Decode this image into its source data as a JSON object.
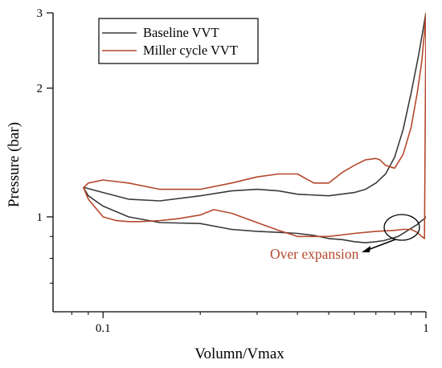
{
  "chart_data": {
    "type": "line",
    "title": "",
    "xlabel": "Volumn/Vmax",
    "ylabel": "Pressure (bar)",
    "x_scale": "log",
    "y_scale": "log",
    "xlim": [
      0.07,
      1.0
    ],
    "ylim": [
      0.6,
      3.0
    ],
    "x_ticks": [
      {
        "value": 0.1,
        "label": "0.1"
      },
      {
        "value": 1,
        "label": "1"
      }
    ],
    "y_ticks": [
      {
        "value": 1,
        "label": "1"
      },
      {
        "value": 2,
        "label": "2"
      },
      {
        "value": 3,
        "label": "3"
      }
    ],
    "legend_position": "top-left",
    "grid": false,
    "series": [
      {
        "name": "Baseline VVT",
        "color": "#3a3a3a",
        "x": [
          1.0,
          0.95,
          0.9,
          0.85,
          0.8,
          0.75,
          0.7,
          0.65,
          0.6,
          0.5,
          0.4,
          0.35,
          0.3,
          0.25,
          0.2,
          0.15,
          0.12,
          0.1,
          0.088,
          0.087,
          0.09,
          0.1,
          0.12,
          0.15,
          0.2,
          0.25,
          0.3,
          0.35,
          0.4,
          0.45,
          0.5,
          0.55,
          0.6,
          0.65,
          0.7,
          0.74,
          0.78,
          0.82,
          0.86,
          0.9,
          0.94,
          0.97,
          0.99,
          1.0
        ],
        "y": [
          3.0,
          2.4,
          1.95,
          1.6,
          1.38,
          1.26,
          1.2,
          1.16,
          1.14,
          1.12,
          1.13,
          1.15,
          1.16,
          1.15,
          1.12,
          1.09,
          1.1,
          1.14,
          1.17,
          1.17,
          1.12,
          1.06,
          1.0,
          0.97,
          0.965,
          0.935,
          0.925,
          0.92,
          0.915,
          0.905,
          0.89,
          0.885,
          0.875,
          0.87,
          0.875,
          0.88,
          0.89,
          0.9,
          0.92,
          0.94,
          0.96,
          0.98,
          0.99,
          1.0
        ]
      },
      {
        "name": "Miller cycle VVT",
        "color": "#b5482c",
        "x": [
          0.087,
          0.09,
          0.1,
          0.12,
          0.15,
          0.2,
          0.25,
          0.3,
          0.35,
          0.4,
          0.45,
          0.5,
          0.55,
          0.6,
          0.65,
          0.7,
          0.72,
          0.75,
          0.8,
          0.85,
          0.9,
          0.94,
          0.97,
          0.99,
          1.0,
          0.99,
          0.97,
          0.94,
          0.9,
          0.85,
          0.8,
          0.7,
          0.6,
          0.5,
          0.4,
          0.35,
          0.3,
          0.25,
          0.22,
          0.2,
          0.17,
          0.15,
          0.13,
          0.12,
          0.11,
          0.1,
          0.09,
          0.087
        ],
        "y": [
          1.17,
          1.2,
          1.22,
          1.2,
          1.16,
          1.16,
          1.2,
          1.24,
          1.26,
          1.26,
          1.2,
          1.2,
          1.27,
          1.32,
          1.36,
          1.37,
          1.36,
          1.32,
          1.3,
          1.4,
          1.62,
          1.95,
          2.3,
          2.7,
          3.0,
          0.89,
          0.9,
          0.92,
          0.935,
          0.935,
          0.93,
          0.925,
          0.915,
          0.9,
          0.9,
          0.93,
          0.97,
          1.02,
          1.04,
          1.01,
          0.99,
          0.98,
          0.975,
          0.975,
          0.98,
          1.0,
          1.1,
          1.17
        ]
      }
    ],
    "annotations": [
      {
        "text": "Over expansion",
        "color": "#b5482c"
      }
    ]
  }
}
